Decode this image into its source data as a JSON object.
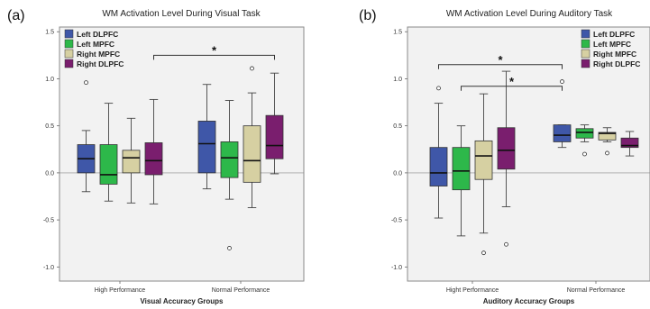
{
  "chart_data": [
    {
      "type": "box",
      "panel_label": "(a)",
      "title": "WM Activation Level During Visual Task",
      "xlabel": "Visual Accuracy Groups",
      "ylabel": "",
      "ylim": [
        -1.15,
        1.55
      ],
      "yticks": [
        "1.5",
        "1.0",
        "0.5",
        "0.0",
        "-0.5",
        "-1.0"
      ],
      "ytick_values": [
        1.5,
        1.0,
        0.5,
        0.0,
        -0.5,
        -1.0
      ],
      "categories": [
        "High Performance",
        "Normal Performance"
      ],
      "legend_position": "top-left",
      "series": [
        {
          "name": "Left DLPFC",
          "color": "#3f57a8",
          "boxes": [
            {
              "min": -0.2,
              "q1": 0.0,
              "median": 0.15,
              "q3": 0.3,
              "max": 0.45,
              "outliers": [
                0.96
              ]
            },
            {
              "min": -0.17,
              "q1": 0.0,
              "median": 0.31,
              "q3": 0.55,
              "max": 0.94,
              "outliers": []
            }
          ]
        },
        {
          "name": "Left MPFC",
          "color": "#2db84a",
          "boxes": [
            {
              "min": -0.3,
              "q1": -0.12,
              "median": -0.02,
              "q3": 0.3,
              "max": 0.74,
              "outliers": []
            },
            {
              "min": -0.28,
              "q1": -0.05,
              "median": 0.16,
              "q3": 0.33,
              "max": 0.77,
              "outliers": [
                -0.8
              ]
            }
          ]
        },
        {
          "name": "Right MPFC",
          "color": "#d6d0a2",
          "boxes": [
            {
              "min": -0.32,
              "q1": 0.0,
              "median": 0.16,
              "q3": 0.24,
              "max": 0.58,
              "outliers": []
            },
            {
              "min": -0.37,
              "q1": -0.1,
              "median": 0.13,
              "q3": 0.5,
              "max": 0.85,
              "outliers": [
                1.11
              ]
            }
          ]
        },
        {
          "name": "Right DLPFC",
          "color": "#7a1e6e",
          "boxes": [
            {
              "min": -0.33,
              "q1": -0.02,
              "median": 0.13,
              "q3": 0.32,
              "max": 0.78,
              "outliers": []
            },
            {
              "min": -0.01,
              "q1": 0.15,
              "median": 0.29,
              "q3": 0.61,
              "max": 1.06,
              "outliers": []
            }
          ]
        }
      ],
      "significance": [
        {
          "label": "*",
          "from": [
            0,
            3
          ],
          "to": [
            1,
            3
          ],
          "y": 1.25
        }
      ]
    },
    {
      "type": "box",
      "panel_label": "(b)",
      "title": "WM Activation Level During Auditory Task",
      "xlabel": "Auditory Accuracy Groups",
      "ylabel": "",
      "ylim": [
        -1.15,
        1.55
      ],
      "yticks": [
        "1.5",
        "1.0",
        "0.5",
        "0.0",
        "-0.5",
        "-1.0"
      ],
      "ytick_values": [
        1.5,
        1.0,
        0.5,
        0.0,
        -0.5,
        -1.0
      ],
      "categories": [
        "Hight Performance",
        "Normal Performance"
      ],
      "legend_position": "top-right",
      "series": [
        {
          "name": "Left DLPFC",
          "color": "#3f57a8",
          "boxes": [
            {
              "min": -0.48,
              "q1": -0.14,
              "median": 0.0,
              "q3": 0.27,
              "max": 0.74,
              "outliers": [
                0.9
              ]
            },
            {
              "min": 0.27,
              "q1": 0.33,
              "median": 0.4,
              "q3": 0.51,
              "max": 0.51,
              "outliers": [
                0.97
              ]
            }
          ]
        },
        {
          "name": "Left MPFC",
          "color": "#2db84a",
          "boxes": [
            {
              "min": -0.67,
              "q1": -0.18,
              "median": 0.02,
              "q3": 0.27,
              "max": 0.5,
              "outliers": []
            },
            {
              "min": 0.33,
              "q1": 0.37,
              "median": 0.43,
              "q3": 0.47,
              "max": 0.51,
              "outliers": [
                0.2
              ]
            }
          ]
        },
        {
          "name": "Right MPFC",
          "color": "#d6d0a2",
          "boxes": [
            {
              "min": -0.64,
              "q1": -0.07,
              "median": 0.18,
              "q3": 0.34,
              "max": 0.84,
              "outliers": [
                -0.85
              ]
            },
            {
              "min": 0.33,
              "q1": 0.35,
              "median": 0.42,
              "q3": 0.43,
              "max": 0.48,
              "outliers": [
                0.21
              ]
            }
          ]
        },
        {
          "name": "Right DLPFC",
          "color": "#7a1e6e",
          "boxes": [
            {
              "min": -0.36,
              "q1": 0.04,
              "median": 0.24,
              "q3": 0.48,
              "max": 1.08,
              "outliers": [
                -0.76
              ]
            },
            {
              "min": 0.18,
              "q1": 0.27,
              "median": 0.29,
              "q3": 0.37,
              "max": 0.44,
              "outliers": []
            }
          ]
        }
      ],
      "significance": [
        {
          "label": "*",
          "from": [
            0,
            0
          ],
          "to": [
            1,
            0
          ],
          "y": 1.15
        },
        {
          "label": "*",
          "from": [
            0,
            1
          ],
          "to": [
            1,
            0
          ],
          "y": 0.92
        }
      ]
    }
  ]
}
